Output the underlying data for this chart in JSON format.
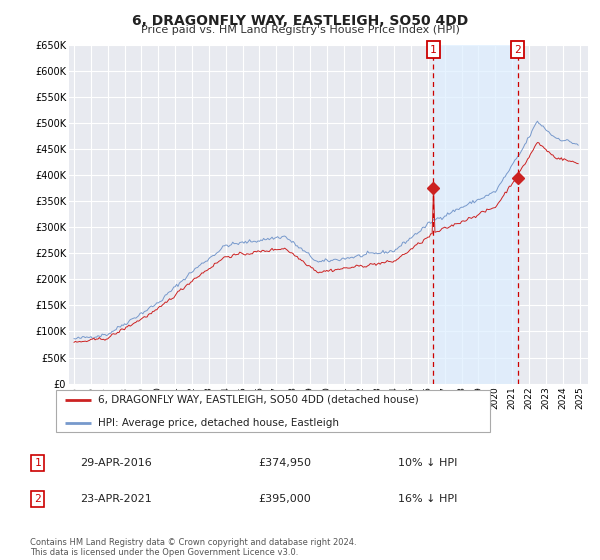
{
  "title": "6, DRAGONFLY WAY, EASTLEIGH, SO50 4DD",
  "subtitle": "Price paid vs. HM Land Registry's House Price Index (HPI)",
  "ylim": [
    0,
    650000
  ],
  "yticks": [
    0,
    50000,
    100000,
    150000,
    200000,
    250000,
    300000,
    350000,
    400000,
    450000,
    500000,
    550000,
    600000,
    650000
  ],
  "ytick_labels": [
    "£0",
    "£50K",
    "£100K",
    "£150K",
    "£200K",
    "£250K",
    "£300K",
    "£350K",
    "£400K",
    "£450K",
    "£500K",
    "£550K",
    "£600K",
    "£650K"
  ],
  "xlim_start": 1994.7,
  "xlim_end": 2025.5,
  "xticks": [
    1995,
    1996,
    1997,
    1998,
    1999,
    2000,
    2001,
    2002,
    2003,
    2004,
    2005,
    2006,
    2007,
    2008,
    2009,
    2010,
    2011,
    2012,
    2013,
    2014,
    2015,
    2016,
    2017,
    2018,
    2019,
    2020,
    2021,
    2022,
    2023,
    2024,
    2025
  ],
  "background_color": "#e8eaf0",
  "grid_color": "#ffffff",
  "hpi_color": "#7799cc",
  "price_color": "#cc2222",
  "vline_color": "#cc0000",
  "shade_color": "#ddeeff",
  "marker1_year": 2016.32,
  "marker2_year": 2021.32,
  "marker1_price": 374950,
  "marker2_price": 395000,
  "marker1_label": "1",
  "marker2_label": "2",
  "marker1_date": "29-APR-2016",
  "marker1_amount": "£374,950",
  "marker1_hpi": "10% ↓ HPI",
  "marker2_date": "23-APR-2021",
  "marker2_amount": "£395,000",
  "marker2_hpi": "16% ↓ HPI",
  "legend_line1": "6, DRAGONFLY WAY, EASTLEIGH, SO50 4DD (detached house)",
  "legend_line2": "HPI: Average price, detached house, Eastleigh",
  "footer": "Contains HM Land Registry data © Crown copyright and database right 2024.\nThis data is licensed under the Open Government Licence v3.0."
}
